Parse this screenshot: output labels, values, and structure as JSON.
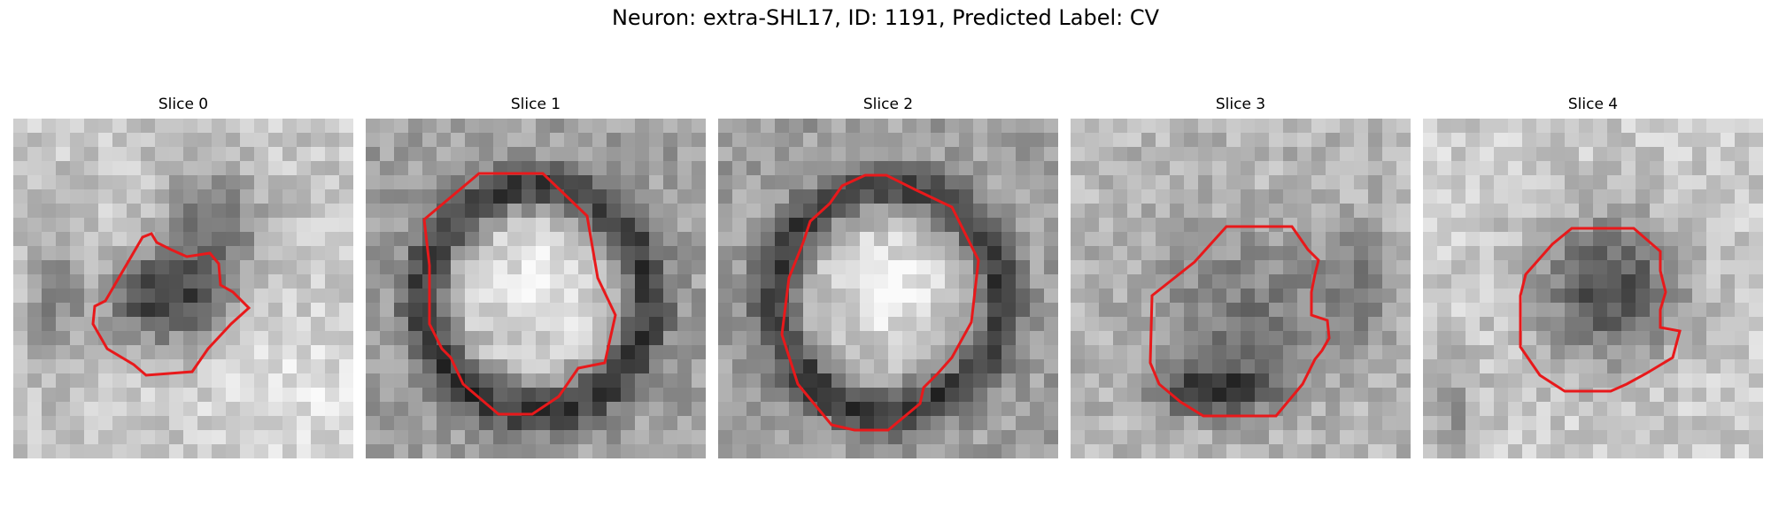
{
  "figure": {
    "title": "Neuron: extra-SHL17, ID: 1191, Predicted Label: CV",
    "contour_color": "#e8191b",
    "panels": [
      {
        "title": "Slice 0",
        "pattern": "dark-blob-bottom-left"
      },
      {
        "title": "Slice 1",
        "pattern": "bright-circle-dark-ring"
      },
      {
        "title": "Slice 2",
        "pattern": "bright-circle-dark-ring"
      },
      {
        "title": "Slice 3",
        "pattern": "grey-blob-dark-bottom"
      },
      {
        "title": "Slice 4",
        "pattern": "dark-blob-center"
      }
    ]
  }
}
